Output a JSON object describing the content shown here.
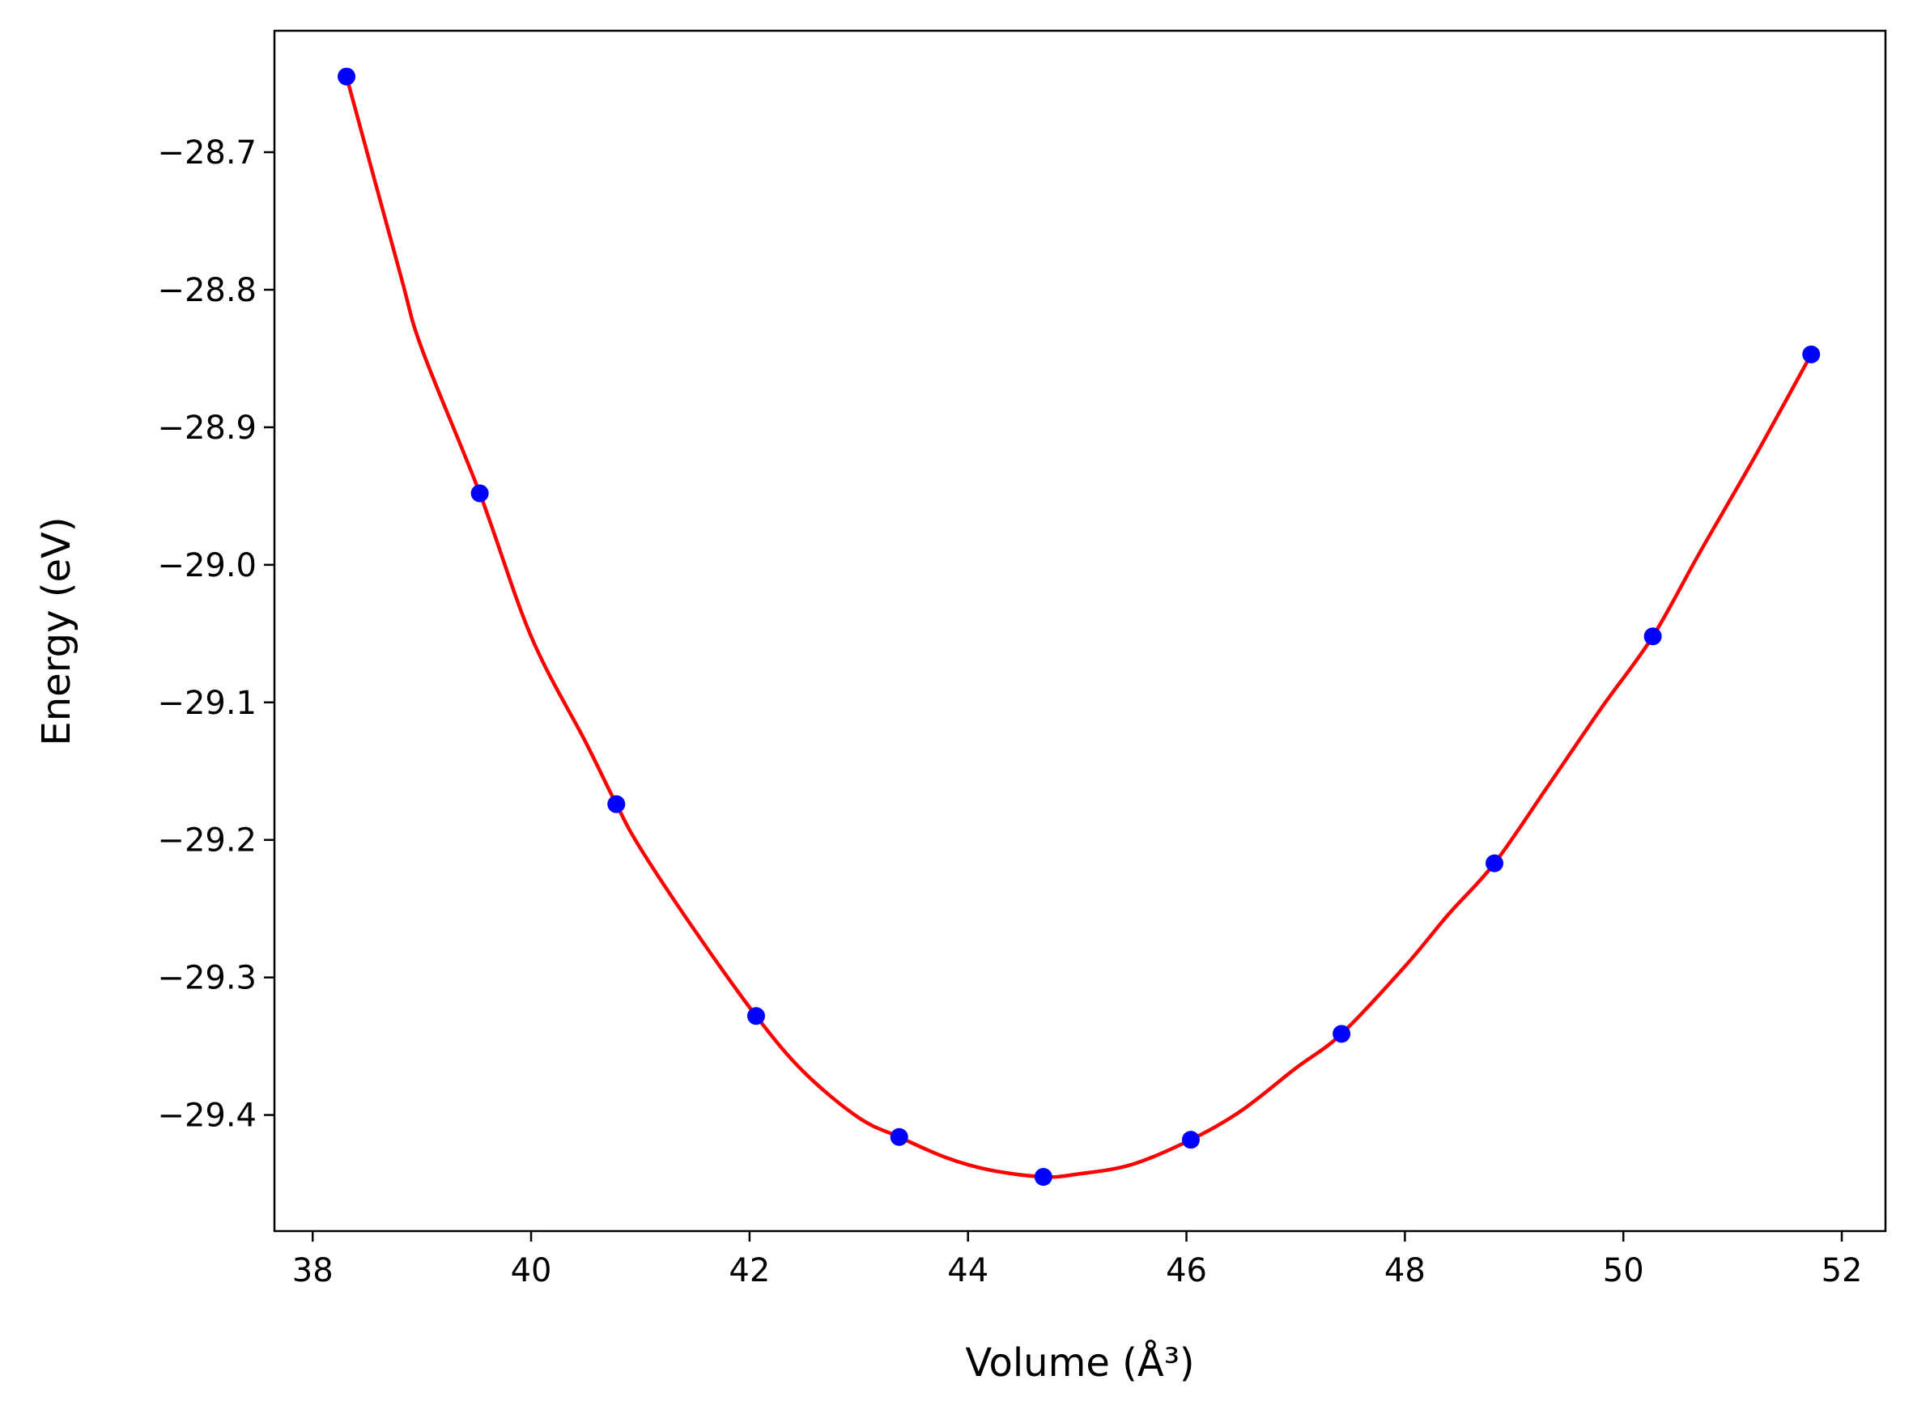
{
  "chart_data": {
    "type": "line",
    "xlabel": "Volume (Å³)",
    "ylabel": "Energy (eV)",
    "xlim": [
      37.65,
      52.4
    ],
    "ylim": [
      -29.4844,
      -28.6117
    ],
    "x_ticks": [
      38,
      40,
      42,
      44,
      46,
      48,
      50,
      52
    ],
    "y_ticks": [
      -29.4,
      -29.3,
      -29.2,
      -29.1,
      -29.0,
      -28.9,
      -28.8,
      -28.7
    ],
    "x_tick_labels": [
      "38",
      "40",
      "42",
      "44",
      "46",
      "48",
      "50",
      "52"
    ],
    "y_tick_labels": [
      "−29.4",
      "−29.3",
      "−29.2",
      "−29.1",
      "−29.0",
      "−28.9",
      "−28.8",
      "−28.7"
    ],
    "grid": false,
    "series": [
      {
        "kind": "points",
        "color": "#0000ff",
        "x": [
          38.31,
          39.53,
          40.78,
          42.06,
          43.37,
          44.69,
          46.04,
          47.42,
          48.82,
          50.27,
          51.72
        ],
        "y": [
          -28.645,
          -28.948,
          -29.174,
          -29.328,
          -29.416,
          -29.445,
          -29.418,
          -29.341,
          -29.217,
          -29.052,
          -28.847
        ]
      },
      {
        "kind": "fit",
        "color": "#ff0000",
        "x": [
          38.31,
          38.8,
          39.0,
          39.53,
          40.0,
          40.5,
          40.78,
          41.0,
          41.5,
          42.06,
          42.5,
          43.0,
          43.37,
          43.8,
          44.2,
          44.69,
          45.0,
          45.5,
          46.04,
          46.5,
          47.0,
          47.42,
          48.0,
          48.4,
          48.82,
          49.3,
          49.8,
          50.27,
          50.7,
          51.2,
          51.72
        ],
        "y": [
          -28.645,
          -28.788,
          -28.843,
          -28.948,
          -29.052,
          -29.129,
          -29.174,
          -29.206,
          -29.266,
          -29.328,
          -29.369,
          -29.402,
          -29.416,
          -29.431,
          -29.44,
          -29.445,
          -29.443,
          -29.436,
          -29.418,
          -29.397,
          -29.366,
          -29.341,
          -29.292,
          -29.254,
          -29.217,
          -29.162,
          -29.104,
          -29.052,
          -28.991,
          -28.922,
          -28.847
        ]
      }
    ]
  }
}
